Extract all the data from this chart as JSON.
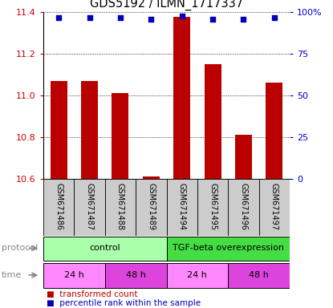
{
  "title": "GDS5192 / ILMN_1717337",
  "samples": [
    "GSM671486",
    "GSM671487",
    "GSM671488",
    "GSM671489",
    "GSM671494",
    "GSM671495",
    "GSM671496",
    "GSM671497"
  ],
  "bar_values": [
    11.07,
    11.07,
    11.01,
    10.61,
    11.38,
    11.15,
    10.81,
    11.06
  ],
  "percentile_values": [
    97,
    97,
    97,
    96,
    98,
    96,
    96,
    97
  ],
  "ylim": [
    10.6,
    11.4
  ],
  "yticks": [
    10.6,
    10.8,
    11.0,
    11.2,
    11.4
  ],
  "right_yticks": [
    0,
    25,
    50,
    75,
    100
  ],
  "right_ylim": [
    0,
    100
  ],
  "bar_color": "#bb0000",
  "dot_color": "#0000bb",
  "bar_width": 0.55,
  "protocol_data": [
    {
      "label": "control",
      "start": 0,
      "end": 3,
      "color": "#aaffaa"
    },
    {
      "label": "TGF-beta overexpression",
      "start": 4,
      "end": 7,
      "color": "#44dd44"
    }
  ],
  "time_data": [
    {
      "label": "24 h",
      "start": 0,
      "end": 1,
      "color": "#ff88ff"
    },
    {
      "label": "48 h",
      "start": 2,
      "end": 3,
      "color": "#dd44dd"
    },
    {
      "label": "24 h",
      "start": 4,
      "end": 5,
      "color": "#ff88ff"
    },
    {
      "label": "48 h",
      "start": 6,
      "end": 7,
      "color": "#dd44dd"
    }
  ],
  "grid_color": "#000000",
  "bg_color": "#ffffff",
  "left_tick_color": "#cc0000",
  "right_tick_color": "#0000cc",
  "sample_box_color": "#cccccc",
  "left_label_color": "#888888"
}
